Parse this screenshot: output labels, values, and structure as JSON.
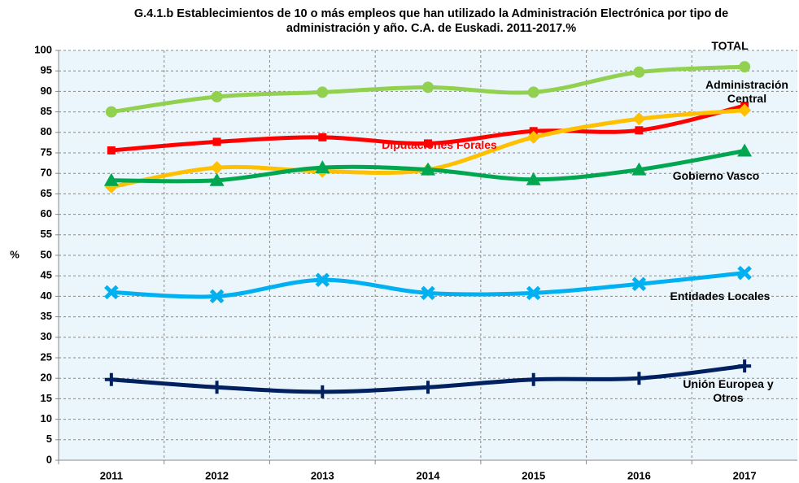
{
  "chart_data": {
    "type": "line",
    "title": "G.4.1.b Establecimientos de 10 o más empleos que han utilizado la Administración Electrónica por tipo de administración y año.  C.A. de Euskadi. 2011-2017.%",
    "ylabel": "%",
    "categories": [
      "2011",
      "2012",
      "2013",
      "2014",
      "2015",
      "2016",
      "2017"
    ],
    "series": [
      {
        "name": "TOTAL",
        "color": "#92d050",
        "marker": "circle",
        "values": [
          85,
          88.7,
          89.8,
          91,
          89.8,
          94.7,
          96
        ]
      },
      {
        "name": "Diputaciones Forales",
        "color": "#ff0000",
        "marker": "square",
        "values": [
          75.6,
          77.7,
          78.8,
          77.3,
          80.3,
          80.5,
          86.5
        ]
      },
      {
        "name": "Administración Central",
        "color": "#ffc000",
        "marker": "diamond",
        "values": [
          66.7,
          71.4,
          70.5,
          70.9,
          78.8,
          83.3,
          85.4
        ]
      },
      {
        "name": "Gobierno Vasco",
        "color": "#00a650",
        "marker": "triangle",
        "values": [
          68.3,
          68.3,
          71.4,
          70.9,
          68.5,
          70.9,
          75.5
        ]
      },
      {
        "name": "Entidades Locales",
        "color": "#00b0f0",
        "marker": "x",
        "values": [
          41,
          40,
          44,
          40.8,
          40.8,
          43,
          45.7
        ]
      },
      {
        "name": "Unión Europea y Otros",
        "color": "#002060",
        "marker": "plus",
        "values": [
          19.7,
          17.8,
          16.7,
          17.8,
          19.7,
          20,
          23
        ]
      }
    ],
    "ylim": [
      0,
      100
    ],
    "yticks": [
      0,
      5,
      10,
      15,
      20,
      25,
      30,
      35,
      40,
      45,
      50,
      55,
      60,
      65,
      70,
      75,
      80,
      85,
      90,
      95,
      100
    ],
    "grid": true
  }
}
